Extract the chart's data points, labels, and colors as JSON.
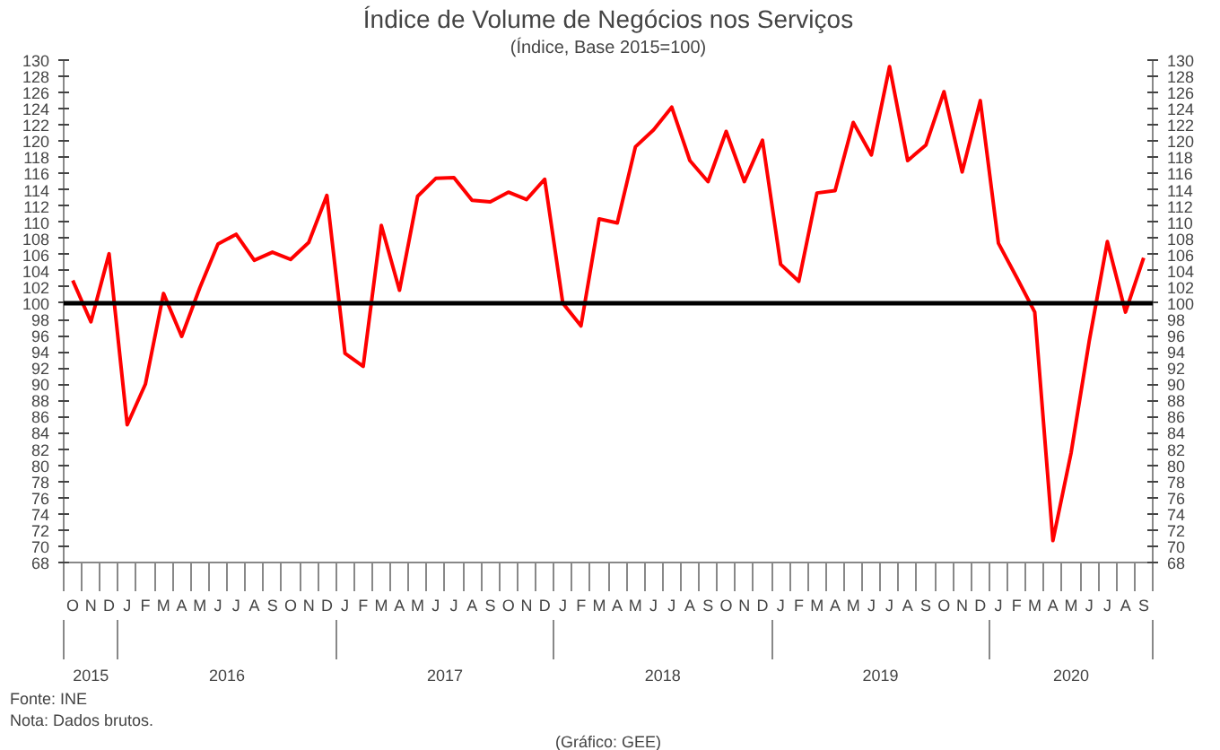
{
  "chart_data": {
    "type": "line",
    "title": "Índice de Volume de Negócios nos Serviços",
    "subtitle": "(Índice, Base 2015=100)",
    "categories": [
      "O",
      "N",
      "D",
      "J",
      "F",
      "M",
      "A",
      "M",
      "J",
      "J",
      "A",
      "S",
      "O",
      "N",
      "D",
      "J",
      "F",
      "M",
      "A",
      "M",
      "J",
      "J",
      "A",
      "S",
      "O",
      "N",
      "D",
      "J",
      "F",
      "M",
      "A",
      "M",
      "J",
      "J",
      "A",
      "S",
      "O",
      "N",
      "D",
      "J",
      "F",
      "M",
      "A",
      "M",
      "J",
      "J",
      "A",
      "S",
      "O",
      "N",
      "D",
      "J",
      "F",
      "M",
      "A",
      "M",
      "J",
      "J",
      "A",
      "S"
    ],
    "series": [
      {
        "color": "#ff0000",
        "values": [
          102.8,
          97.7,
          106.1,
          85.0,
          90.0,
          101.2,
          95.9,
          101.9,
          107.3,
          108.5,
          105.3,
          106.3,
          105.4,
          107.5,
          113.3,
          93.8,
          92.2,
          109.6,
          101.6,
          113.2,
          115.4,
          115.5,
          112.7,
          112.5,
          113.7,
          112.8,
          115.3,
          100.0,
          97.2,
          110.4,
          109.9,
          119.3,
          121.4,
          124.2,
          117.6,
          115.0,
          121.2,
          115.0,
          120.1,
          104.8,
          102.7,
          113.6,
          113.9,
          122.3,
          118.3,
          129.2,
          117.6,
          119.5,
          126.1,
          116.2,
          125.0,
          107.4,
          103.2,
          98.9,
          70.7,
          81.5,
          95.3,
          107.6,
          98.9,
          105.6
        ]
      }
    ],
    "x2lim": [
      2015.25,
      2020.25
    ],
    "x2ticks": [
      {
        "value": 2015.375,
        "label": "2015"
      },
      2016,
      2017,
      2018,
      2019,
      {
        "value": 2019.875,
        "label": "2020"
      }
    ],
    "ylim": [
      68,
      130
    ],
    "yticks": [
      68,
      70,
      72,
      74,
      76,
      78,
      80,
      82,
      84,
      86,
      88,
      90,
      92,
      94,
      96,
      98,
      100,
      102,
      104,
      106,
      108,
      110,
      112,
      114,
      116,
      118,
      120,
      122,
      124,
      126,
      128,
      130
    ],
    "y2lim": [
      68,
      130
    ],
    "y2ticks": [
      68,
      70,
      72,
      74,
      76,
      78,
      80,
      82,
      84,
      86,
      88,
      90,
      92,
      94,
      96,
      98,
      100,
      102,
      104,
      106,
      108,
      110,
      112,
      114,
      116,
      118,
      120,
      122,
      124,
      126,
      128,
      130
    ],
    "ref_lines": [
      {
        "axis": "y",
        "value": 100,
        "color": "#000000",
        "line_style": "solid"
      }
    ],
    "grid": false,
    "marker": "none",
    "line_style": "solid",
    "annotations": [
      "Fonte: INE",
      "Nota: Dados brutos.",
      "(Gráfico: GEE)"
    ]
  }
}
